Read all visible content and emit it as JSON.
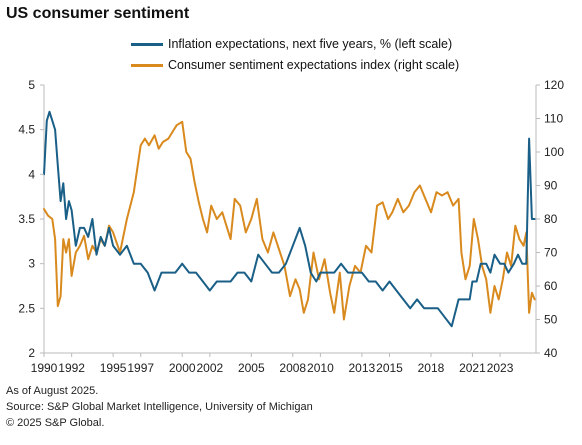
{
  "title": "US consumer sentiment",
  "footer": {
    "asof": "As of August 2025.",
    "source": "Source: S&P Global Market Intelligence, University of Michigan",
    "copyright": "© 2025 S&P Global."
  },
  "colors": {
    "inflation": "#1a5f87",
    "sentiment": "#d98a1e",
    "axis": "#bbbbbb"
  },
  "chart_data": {
    "type": "line",
    "title": "US consumer sentiment",
    "xlim": [
      1990,
      2025.6
    ],
    "x_ticks": [
      "1990",
      "1992",
      "1995",
      "1997",
      "2000",
      "2002",
      "2005",
      "2008",
      "2010",
      "2013",
      "2015",
      "2018",
      "2021",
      "2023"
    ],
    "y_left": {
      "ylim": [
        2,
        5
      ],
      "ticks": [
        "2",
        "2.5",
        "3",
        "3.5",
        "4",
        "4.5",
        "5"
      ]
    },
    "y_right": {
      "ylim": [
        40,
        120
      ],
      "ticks": [
        "40",
        "50",
        "60",
        "70",
        "80",
        "90",
        "100",
        "110",
        "120"
      ]
    },
    "legend_position": "top",
    "grid": false,
    "series": [
      {
        "name": "Inflation expectations, next five years, % (left scale)",
        "axis": "left",
        "color": "#1a5f87",
        "x": [
          1990.0,
          1990.2,
          1990.4,
          1990.6,
          1990.8,
          1991.0,
          1991.2,
          1991.4,
          1991.6,
          1991.8,
          1992.0,
          1992.3,
          1992.6,
          1992.9,
          1993.2,
          1993.5,
          1993.8,
          1994.1,
          1994.4,
          1994.7,
          1995.0,
          1995.5,
          1996.0,
          1996.5,
          1997.0,
          1997.5,
          1998.0,
          1998.5,
          1999.0,
          1999.5,
          2000.0,
          2000.5,
          2001.0,
          2001.5,
          2002.0,
          2002.5,
          2003.0,
          2003.5,
          2004.0,
          2004.5,
          2005.0,
          2005.5,
          2006.0,
          2006.5,
          2007.0,
          2007.5,
          2008.0,
          2008.5,
          2008.9,
          2009.3,
          2009.7,
          2010.0,
          2010.5,
          2011.0,
          2011.5,
          2012.0,
          2012.5,
          2013.0,
          2013.5,
          2014.0,
          2014.5,
          2015.0,
          2015.5,
          2016.0,
          2016.5,
          2017.0,
          2017.5,
          2018.0,
          2018.5,
          2019.0,
          2019.5,
          2020.0,
          2020.4,
          2020.8,
          2021.0,
          2021.3,
          2021.6,
          2022.0,
          2022.3,
          2022.6,
          2023.0,
          2023.3,
          2023.6,
          2024.0,
          2024.3,
          2024.6,
          2024.9,
          2025.1,
          2025.3,
          2025.5
        ],
        "values": [
          4.0,
          4.6,
          4.7,
          4.6,
          4.5,
          4.1,
          3.7,
          3.9,
          3.5,
          3.7,
          3.6,
          3.2,
          3.4,
          3.4,
          3.3,
          3.5,
          3.1,
          3.3,
          3.2,
          3.4,
          3.2,
          3.1,
          3.2,
          3.0,
          3.0,
          2.9,
          2.7,
          2.9,
          2.9,
          2.9,
          3.0,
          2.9,
          2.9,
          2.8,
          2.7,
          2.8,
          2.8,
          2.8,
          2.9,
          2.9,
          2.8,
          3.1,
          3.0,
          2.9,
          2.9,
          3.0,
          3.2,
          3.4,
          3.2,
          2.9,
          2.8,
          2.9,
          2.9,
          2.9,
          3.0,
          2.9,
          2.9,
          2.9,
          2.8,
          2.8,
          2.7,
          2.8,
          2.7,
          2.6,
          2.5,
          2.6,
          2.5,
          2.5,
          2.5,
          2.4,
          2.3,
          2.6,
          2.6,
          2.6,
          2.8,
          2.8,
          3.0,
          3.0,
          2.9,
          3.1,
          3.0,
          3.0,
          2.9,
          3.0,
          3.1,
          3.0,
          3.0,
          4.4,
          3.5,
          3.5
        ]
      },
      {
        "name": "Consumer sentiment expectations index (right scale)",
        "axis": "right",
        "color": "#d98a1e",
        "x": [
          1990.0,
          1990.3,
          1990.6,
          1990.8,
          1991.0,
          1991.2,
          1991.4,
          1991.6,
          1991.8,
          1992.0,
          1992.3,
          1992.6,
          1992.9,
          1993.2,
          1993.5,
          1993.8,
          1994.1,
          1994.4,
          1994.7,
          1995.0,
          1995.5,
          1996.0,
          1996.5,
          1997.0,
          1997.3,
          1997.6,
          1998.0,
          1998.3,
          1998.6,
          1999.0,
          1999.3,
          1999.6,
          2000.0,
          2000.3,
          2000.6,
          2000.9,
          2001.2,
          2001.5,
          2001.8,
          2002.1,
          2002.5,
          2002.9,
          2003.2,
          2003.5,
          2003.8,
          2004.2,
          2004.6,
          2005.0,
          2005.4,
          2005.8,
          2006.2,
          2006.6,
          2007.0,
          2007.4,
          2007.8,
          2008.2,
          2008.5,
          2008.8,
          2009.1,
          2009.5,
          2009.9,
          2010.3,
          2010.7,
          2011.0,
          2011.4,
          2011.7,
          2012.1,
          2012.5,
          2012.9,
          2013.3,
          2013.7,
          2014.1,
          2014.5,
          2014.9,
          2015.2,
          2015.6,
          2016.0,
          2016.4,
          2016.8,
          2017.2,
          2017.6,
          2018.0,
          2018.4,
          2018.8,
          2019.2,
          2019.6,
          2020.0,
          2020.2,
          2020.5,
          2020.8,
          2021.1,
          2021.4,
          2021.7,
          2022.0,
          2022.3,
          2022.6,
          2022.9,
          2023.2,
          2023.5,
          2023.8,
          2024.1,
          2024.4,
          2024.7,
          2024.9,
          2025.1,
          2025.3,
          2025.5
        ],
        "values": [
          83,
          81,
          80,
          74,
          54,
          57,
          74,
          70,
          74,
          63,
          70,
          72,
          75,
          68,
          72,
          70,
          74,
          72,
          78,
          76,
          70,
          80,
          88,
          102,
          104,
          102,
          105,
          101,
          103,
          104,
          106,
          108,
          109,
          100,
          98,
          91,
          85,
          80,
          76,
          84,
          80,
          82,
          78,
          74,
          86,
          84,
          76,
          80,
          86,
          74,
          70,
          76,
          71,
          66,
          57,
          62,
          59,
          52,
          56,
          70,
          62,
          68,
          58,
          52,
          64,
          50,
          60,
          66,
          64,
          72,
          70,
          84,
          85,
          80,
          82,
          86,
          82,
          84,
          88,
          90,
          86,
          82,
          88,
          87,
          88,
          84,
          86,
          70,
          62,
          66,
          80,
          74,
          66,
          62,
          52,
          60,
          56,
          62,
          70,
          66,
          78,
          74,
          72,
          76,
          52,
          58,
          56
        ]
      }
    ]
  }
}
